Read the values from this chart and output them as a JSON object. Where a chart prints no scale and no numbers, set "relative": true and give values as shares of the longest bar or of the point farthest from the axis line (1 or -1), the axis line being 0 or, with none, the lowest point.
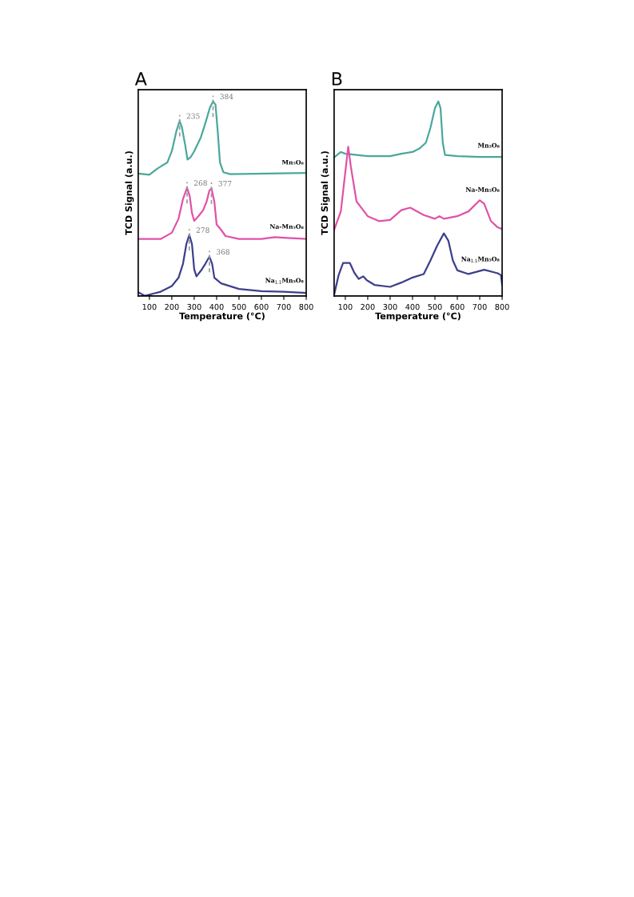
{
  "chart_data": [
    {
      "type": "line",
      "title": "A",
      "xlabel": "Temperature (°C)",
      "ylabel": "TCD Signal (a.u.)",
      "relative": true,
      "xlim": [
        50,
        800
      ],
      "xticks": [
        100,
        200,
        300,
        400,
        500,
        600,
        700,
        800
      ],
      "legend": false,
      "grid": false,
      "marker": "none",
      "line_style": "solid",
      "series": [
        {
          "name": "Mn₅O₈",
          "color": "#4aa89c",
          "x": [
            50,
            100,
            130,
            140,
            180,
            200,
            220,
            235,
            245,
            260,
            270,
            285,
            300,
            330,
            350,
            370,
            384,
            395,
            405,
            415,
            430,
            460,
            800
          ],
          "values": [
            0.629,
            0.623,
            0.65,
            0.658,
            0.686,
            0.744,
            0.845,
            0.9,
            0.867,
            0.773,
            0.701,
            0.715,
            0.744,
            0.816,
            0.889,
            0.968,
            1.0,
            0.983,
            0.845,
            0.686,
            0.636,
            0.626,
            0.632
          ]
        },
        {
          "name": "Na-Mn₅O₈",
          "color": "#e052a8",
          "x": [
            50,
            150,
            200,
            230,
            250,
            268,
            280,
            290,
            300,
            320,
            340,
            355,
            368,
            377,
            390,
            400,
            420,
            440,
            500,
            600,
            660,
            700,
            800
          ],
          "values": [
            0.293,
            0.293,
            0.325,
            0.397,
            0.499,
            0.556,
            0.513,
            0.426,
            0.386,
            0.412,
            0.441,
            0.484,
            0.542,
            0.553,
            0.484,
            0.368,
            0.34,
            0.308,
            0.293,
            0.293,
            0.302,
            0.299,
            0.293
          ]
        },
        {
          "name": "Na$_{1.1}$Mn₅O₈",
          "color": "#3d3f8c",
          "x": [
            50,
            80,
            120,
            150,
            200,
            230,
            250,
            265,
            278,
            290,
            300,
            310,
            330,
            350,
            368,
            380,
            390,
            420,
            500,
            600,
            700,
            800
          ],
          "values": [
            0.019,
            0.001,
            0.013,
            0.022,
            0.051,
            0.094,
            0.166,
            0.267,
            0.314,
            0.267,
            0.137,
            0.101,
            0.13,
            0.166,
            0.202,
            0.166,
            0.094,
            0.065,
            0.036,
            0.025,
            0.022,
            0.016
          ]
        }
      ],
      "annotations": [
        {
          "text": "235",
          "x": 235,
          "y": 0.9
        },
        {
          "text": "384",
          "x": 384,
          "y": 1.0
        },
        {
          "text": "268",
          "x": 268,
          "y": 0.556
        },
        {
          "text": "377",
          "x": 377,
          "y": 0.553
        },
        {
          "text": "278",
          "x": 278,
          "y": 0.314
        },
        {
          "text": "368",
          "x": 368,
          "y": 0.202
        }
      ]
    },
    {
      "type": "line",
      "title": "B",
      "xlabel": "Temperature (°C)",
      "ylabel": "TCD Signal (a.u.)",
      "relative": true,
      "xlim": [
        50,
        800
      ],
      "xticks": [
        100,
        200,
        300,
        400,
        500,
        600,
        700,
        800
      ],
      "legend": false,
      "grid": false,
      "marker": "none",
      "line_style": "solid",
      "series": [
        {
          "name": "Mn₅O₈",
          "color": "#4aa89c",
          "x": [
            50,
            80,
            100,
            150,
            200,
            300,
            350,
            400,
            430,
            460,
            480,
            500,
            515,
            525,
            535,
            545,
            600,
            700,
            800
          ],
          "values": [
            0.712,
            0.74,
            0.731,
            0.725,
            0.719,
            0.719,
            0.731,
            0.74,
            0.757,
            0.788,
            0.864,
            0.965,
            1.0,
            0.965,
            0.788,
            0.725,
            0.719,
            0.715,
            0.715
          ]
        },
        {
          "name": "Na-Mn₅O₈",
          "color": "#e052a8",
          "x": [
            50,
            80,
            100,
            113,
            125,
            150,
            200,
            250,
            300,
            350,
            390,
            450,
            500,
            520,
            540,
            600,
            650,
            700,
            720,
            750,
            780,
            800
          ],
          "values": [
            0.34,
            0.435,
            0.637,
            0.767,
            0.662,
            0.486,
            0.41,
            0.385,
            0.391,
            0.441,
            0.454,
            0.416,
            0.397,
            0.41,
            0.397,
            0.41,
            0.435,
            0.492,
            0.474,
            0.385,
            0.353,
            0.344
          ]
        },
        {
          "name": "Na$_{1.1}$Mn₅O₈",
          "color": "#3d3f8c",
          "x": [
            50,
            70,
            90,
            100,
            120,
            140,
            160,
            180,
            195,
            230,
            300,
            350,
            400,
            450,
            480,
            510,
            540,
            560,
            580,
            600,
            650,
            720,
            780,
            795,
            800
          ],
          "values": [
            0.006,
            0.107,
            0.17,
            0.17,
            0.17,
            0.12,
            0.088,
            0.101,
            0.082,
            0.057,
            0.047,
            0.069,
            0.095,
            0.113,
            0.183,
            0.259,
            0.322,
            0.284,
            0.183,
            0.132,
            0.113,
            0.135,
            0.117,
            0.107,
            0.057
          ]
        }
      ]
    }
  ]
}
